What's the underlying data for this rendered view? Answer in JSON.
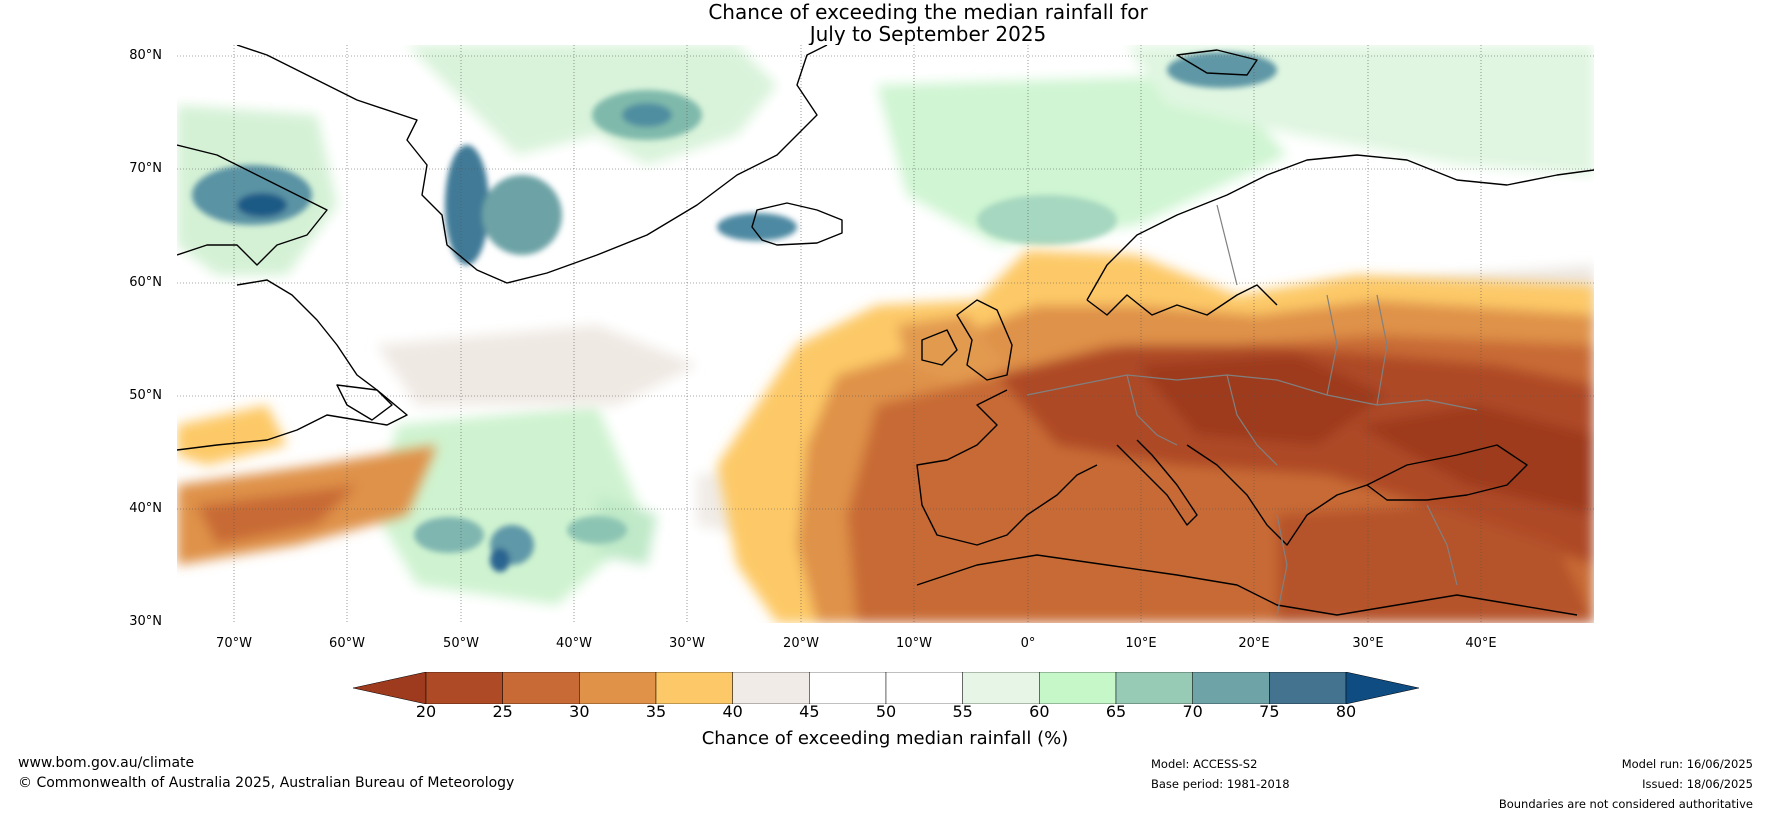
{
  "title": {
    "line1": "Chance of exceeding the median rainfall for",
    "line2": "July to September 2025"
  },
  "map": {
    "region": "North Atlantic and Europe",
    "lat_labels": [
      "80°N",
      "70°N",
      "60°N",
      "50°N",
      "40°N",
      "30°N"
    ],
    "lon_labels": [
      "70°W",
      "60°W",
      "50°W",
      "40°W",
      "30°W",
      "20°W",
      "10°W",
      "0°",
      "10°E",
      "20°E",
      "30°E",
      "40°E"
    ],
    "land_outline_color": "#000000",
    "country_border_color": "#808080",
    "gridline_color": "#555555"
  },
  "colorbar": {
    "label": "Chance of exceeding median rainfall (%)",
    "ticks": [
      "20",
      "25",
      "30",
      "35",
      "40",
      "45",
      "50",
      "55",
      "60",
      "65",
      "70",
      "75",
      "80"
    ],
    "colors": [
      "#9e3a1e",
      "#ae4a25",
      "#c86a35",
      "#df9248",
      "#fdc968",
      "#f0ebe6",
      "#ffffff",
      "#ffffff",
      "#e6f5e6",
      "#c5f7c9",
      "#97cbb5",
      "#6ea3a8",
      "#44738f",
      "#0f4c81"
    ]
  },
  "footer": {
    "website": "www.bom.gov.au/climate",
    "copyright": "© Commonwealth of Australia 2025, Australian Bureau of Meteorology",
    "model": "Model: ACCESS-S2",
    "base_period": "Base period: 1981-2018",
    "model_run": "Model run: 16/06/2025",
    "issued": "Issued: 18/06/2025",
    "disclaimer": "Boundaries are not considered authoritative"
  }
}
